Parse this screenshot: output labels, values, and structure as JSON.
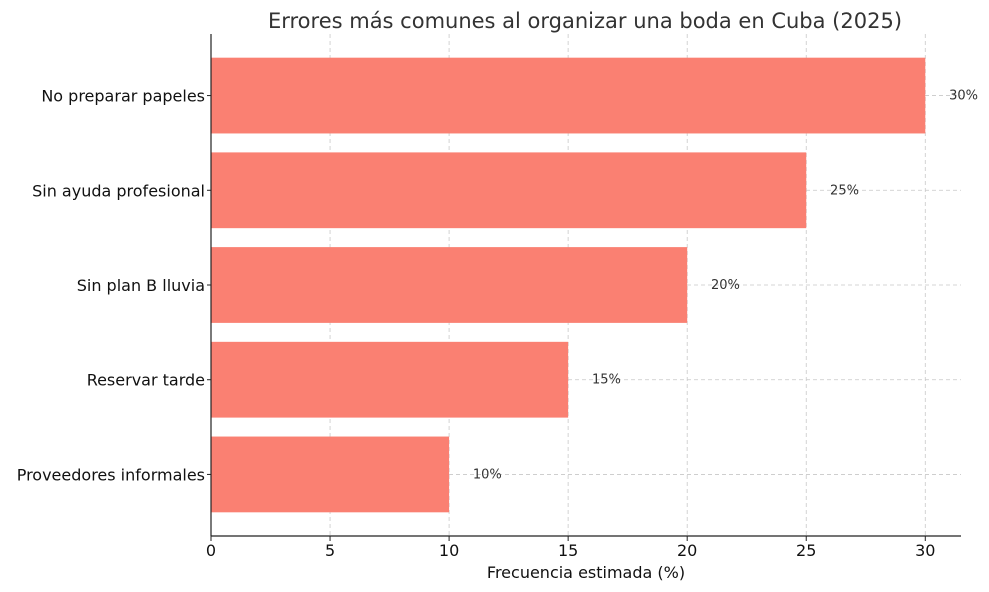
{
  "chart_data": {
    "type": "bar",
    "orientation": "horizontal",
    "title": "Errores más comunes al organizar una boda en Cuba (2025)",
    "xlabel": "Frecuencia estimada (%)",
    "ylabel": "",
    "categories": [
      "No preparar papeles",
      "Sin ayuda profesional",
      "Sin plan B lluvia",
      "Reservar tarde",
      "Proveedores informales"
    ],
    "values": [
      30,
      25,
      20,
      15,
      10
    ],
    "data_labels": [
      "30%",
      "25%",
      "20%",
      "15%",
      "10%"
    ],
    "xlim": [
      0,
      31.5
    ],
    "xticks": [
      0,
      5,
      10,
      15,
      20,
      25,
      30
    ],
    "xtick_labels": [
      "0",
      "5",
      "10",
      "15",
      "20",
      "25",
      "30"
    ],
    "grid": true,
    "bar_color": "#fa8072"
  }
}
